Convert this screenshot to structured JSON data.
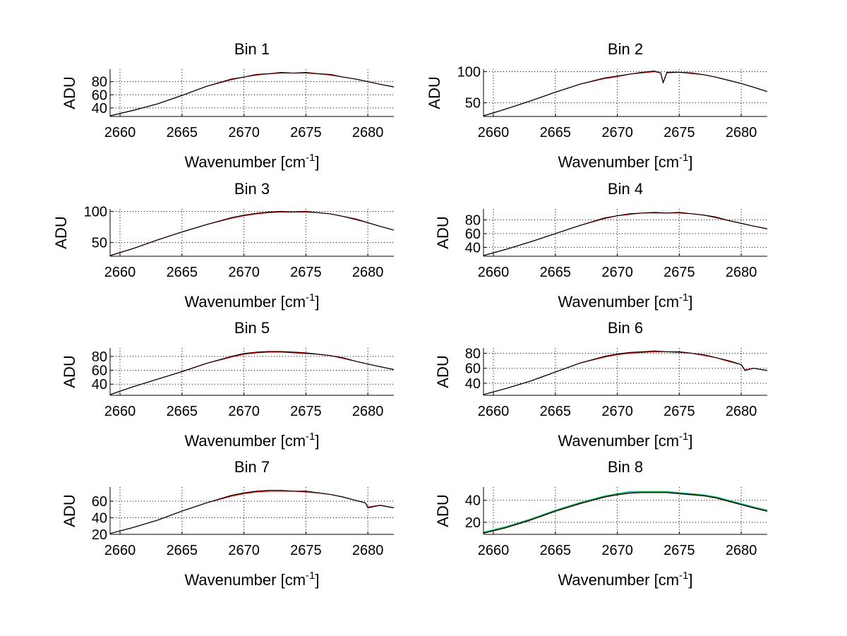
{
  "chart_data": [
    {
      "type": "line",
      "title": "Bin 1",
      "xlabel": "Wavenumber [cm",
      "xlabel_superscript": "-1",
      "xlabel_suffix": "]",
      "ylabel": "ADU",
      "xlim": [
        2659.2,
        2682.1
      ],
      "ylim": [
        27,
        99
      ],
      "xticks": [
        2660,
        2665,
        2670,
        2675,
        2680
      ],
      "yticks": [
        40,
        60,
        80
      ],
      "grid": true,
      "x": [
        2659.2,
        2661,
        2663,
        2665,
        2667,
        2669,
        2670,
        2671,
        2672,
        2673,
        2674,
        2675,
        2676,
        2677,
        2678,
        2679,
        2680,
        2681,
        2682.1
      ],
      "series": [
        {
          "name": "red",
          "color": "#ff0000",
          "values": [
            28,
            36,
            46,
            59,
            73,
            83,
            87,
            90,
            92,
            93,
            93,
            93,
            92,
            90,
            87,
            84,
            80,
            76,
            72
          ]
        },
        {
          "name": "black",
          "color": "#000000",
          "values": [
            28,
            36,
            46,
            59,
            73,
            84,
            87,
            91,
            92,
            94,
            93,
            94,
            92,
            91,
            87,
            84,
            80,
            76,
            72
          ]
        }
      ]
    },
    {
      "type": "line",
      "title": "Bin 2",
      "xlabel": "Wavenumber [cm",
      "xlabel_superscript": "-1",
      "xlabel_suffix": "]",
      "ylabel": "ADU",
      "xlim": [
        2659.2,
        2682.1
      ],
      "ylim": [
        28,
        104
      ],
      "xticks": [
        2660,
        2665,
        2670,
        2675,
        2680
      ],
      "yticks": [
        50,
        100
      ],
      "grid": true,
      "x": [
        2659.2,
        2661,
        2663,
        2665,
        2667,
        2669,
        2670,
        2671,
        2672,
        2673,
        2673.5,
        2673.7,
        2674,
        2675,
        2676,
        2677,
        2678,
        2679,
        2680,
        2681,
        2682.1
      ],
      "series": [
        {
          "name": "red",
          "color": "#ff0000",
          "values": [
            29,
            40,
            53,
            67,
            80,
            89,
            92,
            96,
            98,
            100,
            98,
            83,
            98,
            99,
            97,
            95,
            91,
            86,
            81,
            75,
            68
          ]
        },
        {
          "name": "black",
          "color": "#000000",
          "values": [
            29,
            40,
            53,
            67,
            80,
            90,
            93,
            96,
            99,
            101,
            98,
            82,
            99,
            99,
            98,
            95,
            91,
            86,
            81,
            75,
            68
          ]
        }
      ]
    },
    {
      "type": "line",
      "title": "Bin 3",
      "xlabel": "Wavenumber [cm",
      "xlabel_superscript": "-1",
      "xlabel_suffix": "]",
      "ylabel": "ADU",
      "xlim": [
        2659.2,
        2682.1
      ],
      "ylim": [
        28,
        104
      ],
      "xticks": [
        2660,
        2665,
        2670,
        2675,
        2680
      ],
      "yticks": [
        50,
        100
      ],
      "grid": true,
      "x": [
        2659.2,
        2661,
        2663,
        2665,
        2667,
        2669,
        2670,
        2671,
        2672,
        2673,
        2674,
        2675,
        2676,
        2677,
        2678,
        2679,
        2680,
        2681,
        2682.1
      ],
      "series": [
        {
          "name": "red",
          "color": "#ff0000",
          "values": [
            29,
            40,
            54,
            67,
            79,
            89,
            93,
            96,
            98,
            99,
            99,
            99,
            98,
            96,
            92,
            87,
            82,
            76,
            70
          ]
        },
        {
          "name": "black",
          "color": "#000000",
          "values": [
            29,
            40,
            54,
            67,
            79,
            90,
            94,
            97,
            99,
            100,
            99,
            100,
            98,
            96,
            92,
            88,
            82,
            76,
            70
          ]
        }
      ]
    },
    {
      "type": "line",
      "title": "Bin 4",
      "xlabel": "Wavenumber [cm",
      "xlabel_superscript": "-1",
      "xlabel_suffix": "]",
      "ylabel": "ADU",
      "xlim": [
        2659.2,
        2682.1
      ],
      "ylim": [
        27,
        96
      ],
      "xticks": [
        2660,
        2665,
        2670,
        2675,
        2680
      ],
      "yticks": [
        40,
        60,
        80
      ],
      "grid": true,
      "x": [
        2659.2,
        2661,
        2663,
        2665,
        2667,
        2669,
        2670,
        2671,
        2672,
        2673,
        2674,
        2675,
        2676,
        2677,
        2678,
        2679,
        2680,
        2681,
        2682.1
      ],
      "series": [
        {
          "name": "red",
          "color": "#ff0000",
          "values": [
            28,
            37,
            48,
            60,
            72,
            82,
            86,
            88,
            90,
            90,
            90,
            90,
            89,
            87,
            83,
            79,
            75,
            71,
            67
          ]
        },
        {
          "name": "black",
          "color": "#000000",
          "values": [
            28,
            37,
            48,
            60,
            72,
            83,
            86,
            89,
            90,
            91,
            90,
            91,
            89,
            87,
            84,
            79,
            75,
            71,
            67
          ]
        }
      ]
    },
    {
      "type": "line",
      "title": "Bin 5",
      "xlabel": "Wavenumber [cm",
      "xlabel_superscript": "-1",
      "xlabel_suffix": "]",
      "ylabel": "ADU",
      "xlim": [
        2659.2,
        2682.1
      ],
      "ylim": [
        24,
        92
      ],
      "xticks": [
        2660,
        2665,
        2670,
        2675,
        2680
      ],
      "yticks": [
        40,
        60,
        80
      ],
      "grid": true,
      "x": [
        2659.2,
        2661,
        2663,
        2665,
        2667,
        2669,
        2670,
        2671,
        2672,
        2673,
        2674,
        2675,
        2676,
        2677,
        2678,
        2679,
        2680,
        2681,
        2682.1
      ],
      "series": [
        {
          "name": "red",
          "color": "#ff0000",
          "values": [
            25,
            36,
            47,
            58,
            70,
            79,
            83,
            85,
            86,
            86,
            85,
            84,
            83,
            81,
            77,
            73,
            69,
            65,
            61
          ]
        },
        {
          "name": "black",
          "color": "#000000",
          "values": [
            25,
            36,
            47,
            58,
            70,
            80,
            84,
            86,
            87,
            87,
            86,
            85,
            83,
            81,
            78,
            73,
            69,
            65,
            61
          ]
        }
      ]
    },
    {
      "type": "line",
      "title": "Bin 6",
      "xlabel": "Wavenumber [cm",
      "xlabel_superscript": "-1",
      "xlabel_suffix": "]",
      "ylabel": "ADU",
      "xlim": [
        2659.2,
        2682.1
      ],
      "ylim": [
        24,
        87
      ],
      "xticks": [
        2660,
        2665,
        2670,
        2675,
        2680
      ],
      "yticks": [
        40,
        60,
        80
      ],
      "grid": true,
      "x": [
        2659.2,
        2661,
        2663,
        2665,
        2667,
        2669,
        2670,
        2671,
        2672,
        2673,
        2674,
        2675,
        2676,
        2677,
        2678,
        2679,
        2680,
        2680.3,
        2681,
        2682.1
      ],
      "series": [
        {
          "name": "red",
          "color": "#ff0000",
          "values": [
            25,
            33,
            43,
            55,
            67,
            75,
            78,
            80,
            81,
            82,
            82,
            81,
            80,
            77,
            74,
            69,
            65,
            58,
            60,
            57
          ]
        },
        {
          "name": "black",
          "color": "#000000",
          "values": [
            25,
            33,
            43,
            55,
            67,
            76,
            79,
            81,
            82,
            83,
            82,
            82,
            80,
            78,
            74,
            70,
            65,
            57,
            60,
            57
          ]
        }
      ]
    },
    {
      "type": "line",
      "title": "Bin 7",
      "xlabel": "Wavenumber [cm",
      "xlabel_superscript": "-1",
      "xlabel_suffix": "]",
      "ylabel": "ADU",
      "xlim": [
        2659.2,
        2682.1
      ],
      "ylim": [
        20,
        77
      ],
      "xticks": [
        2660,
        2665,
        2670,
        2675,
        2680
      ],
      "yticks": [
        20,
        40,
        60
      ],
      "grid": true,
      "x": [
        2659.2,
        2661,
        2663,
        2665,
        2667,
        2669,
        2670,
        2671,
        2672,
        2673,
        2674,
        2675,
        2676,
        2677,
        2678,
        2679,
        2679.8,
        2680,
        2681,
        2682.1
      ],
      "series": [
        {
          "name": "red",
          "color": "#ff0000",
          "values": [
            21,
            28,
            37,
            48,
            58,
            66,
            69,
            71,
            72,
            72,
            72,
            71,
            70,
            68,
            65,
            61,
            58,
            53,
            55,
            52
          ]
        },
        {
          "name": "black",
          "color": "#000000",
          "values": [
            21,
            28,
            37,
            48,
            58,
            67,
            70,
            72,
            73,
            73,
            72,
            72,
            70,
            68,
            65,
            61,
            58,
            52,
            55,
            52
          ]
        }
      ]
    },
    {
      "type": "line",
      "title": "Bin 8",
      "xlabel": "Wavenumber [cm",
      "xlabel_superscript": "-1",
      "xlabel_suffix": "]",
      "ylabel": "ADU",
      "xlim": [
        2659.2,
        2682.1
      ],
      "ylim": [
        9,
        52
      ],
      "xticks": [
        2660,
        2665,
        2670,
        2675,
        2680
      ],
      "yticks": [
        20,
        40
      ],
      "grid": true,
      "x": [
        2659.2,
        2661,
        2663,
        2665,
        2667,
        2669,
        2670,
        2671,
        2672,
        2673,
        2674,
        2675,
        2676,
        2677,
        2678,
        2679,
        2680,
        2681,
        2682.1
      ],
      "series": [
        {
          "name": "cyan",
          "color": "#00bfbf",
          "values": [
            11,
            16,
            23,
            31,
            38,
            44,
            46,
            48,
            48,
            48,
            48,
            47,
            46,
            45,
            43,
            40,
            37,
            34,
            31
          ]
        },
        {
          "name": "green",
          "color": "#00aa00",
          "values": [
            10.5,
            15.5,
            22.5,
            30.5,
            37.5,
            43.5,
            45.5,
            47,
            47.5,
            47.5,
            47.5,
            46.5,
            45.5,
            44.5,
            42.5,
            39.5,
            36.5,
            33.5,
            30.5
          ]
        },
        {
          "name": "red",
          "color": "#ff0000",
          "values": [
            10,
            15,
            22,
            30,
            37,
            43,
            45,
            46.5,
            47,
            47,
            47,
            46,
            45,
            44,
            42,
            39,
            36,
            33,
            30
          ]
        },
        {
          "name": "black",
          "color": "#000000",
          "values": [
            10,
            15,
            22,
            30,
            37,
            43,
            45,
            46.5,
            47,
            47,
            47,
            46,
            45,
            44,
            42,
            39,
            36,
            33,
            30
          ]
        }
      ]
    }
  ]
}
